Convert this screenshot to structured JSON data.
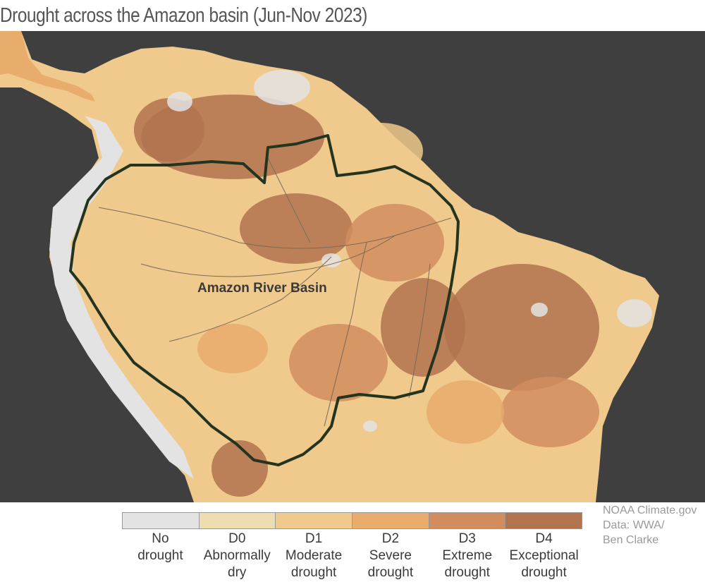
{
  "title": "Drought across the Amazon basin (Jun-Nov 2023)",
  "map": {
    "region_label": "Amazon River Basin",
    "colors": {
      "ocean": "#3f3f3f",
      "basin_outline": "#24341f",
      "rivers": "#7a6a55"
    }
  },
  "legend": {
    "items": [
      {
        "code": "",
        "line1": "No",
        "line2": "drought",
        "color": "#e3e3e3"
      },
      {
        "code": "D0",
        "line1": "Abnormally",
        "line2": "dry",
        "color": "#ecdcb0"
      },
      {
        "code": "D1",
        "line1": "Moderate",
        "line2": "drought",
        "color": "#efca8c"
      },
      {
        "code": "D2",
        "line1": "Severe",
        "line2": "drought",
        "color": "#e8ac6c"
      },
      {
        "code": "D3",
        "line1": "Extreme",
        "line2": "drought",
        "color": "#d18d5e"
      },
      {
        "code": "D4",
        "line1": "Exceptional",
        "line2": "drought",
        "color": "#b2734f"
      }
    ]
  },
  "credit": {
    "line1": "NOAA Climate.gov",
    "line2": "Data: WWA/",
    "line3": "Ben Clarke"
  }
}
